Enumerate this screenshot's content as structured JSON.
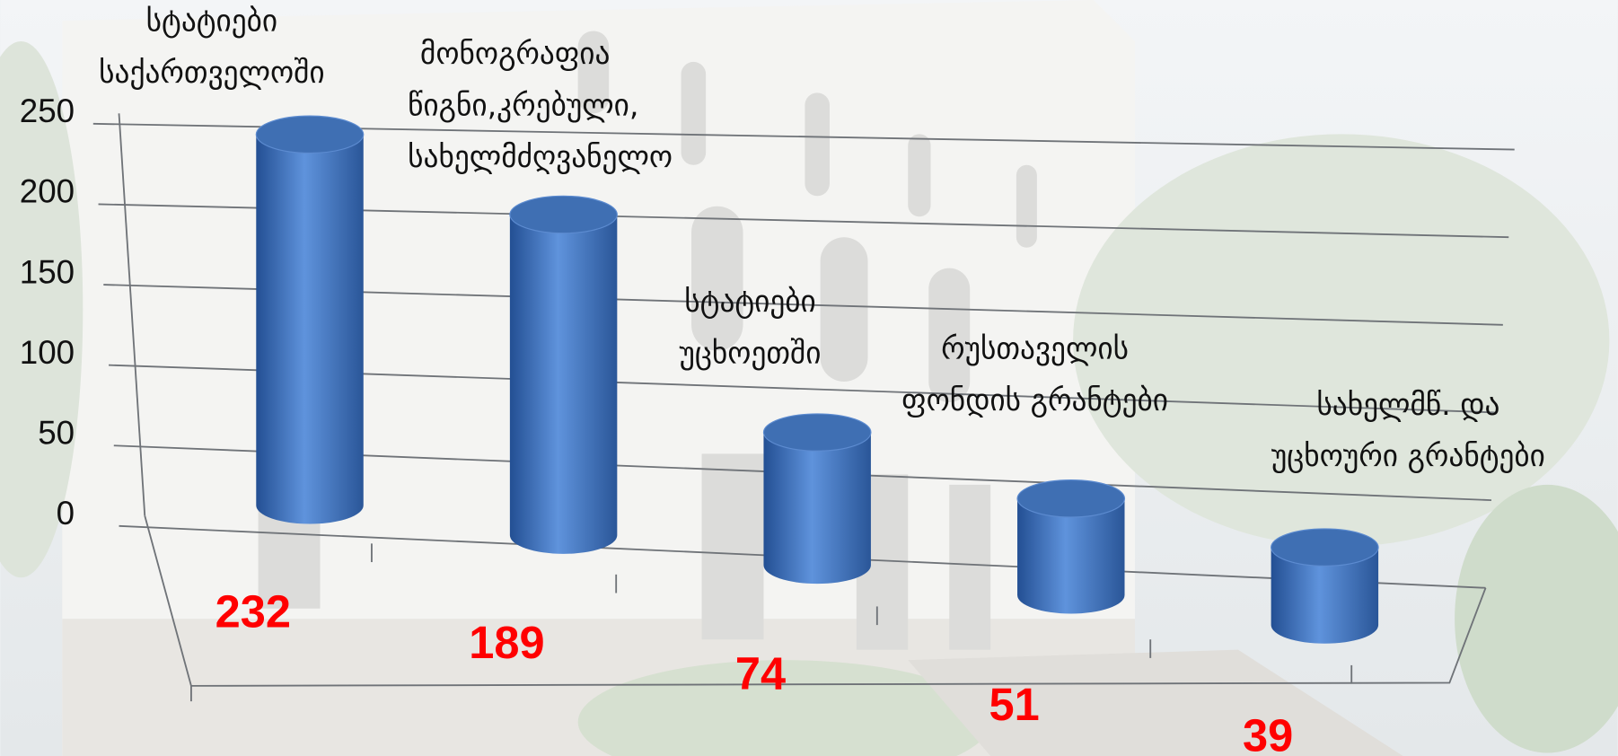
{
  "chart_data": {
    "type": "bar3d",
    "categories": [
      "სტატიები\nსაქართველოში",
      "მონოგრაფია\nწიგნი,კრებული,\nსახელმძღვანელო",
      "სტატიები\nუცხოეთში",
      "რუსთაველის\nფონდის გრანტები",
      "სახელმწ.  და\nუცხოური გრანტები"
    ],
    "values": [
      232,
      189,
      74,
      51,
      39
    ],
    "color": "#3a6db5",
    "value_label_color": "#ff0000",
    "ylim": [
      0,
      250
    ],
    "yticks": [
      0,
      50,
      100,
      150,
      200,
      250
    ],
    "grid": true
  }
}
